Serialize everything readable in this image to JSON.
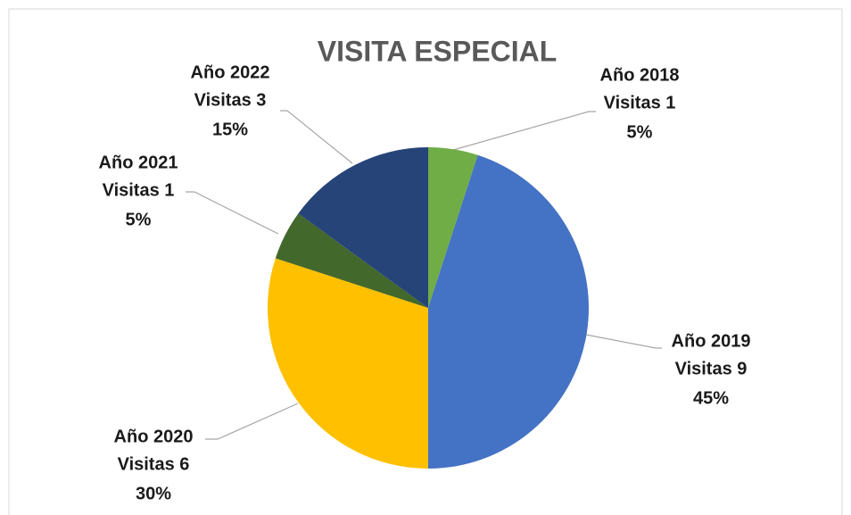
{
  "chart_data": {
    "type": "pie",
    "title": "VISITA ESPECIAL",
    "categories": [
      "Año 2018",
      "Año 2019",
      "Año 2020",
      "Año 2021",
      "Año 2022"
    ],
    "values": [
      1,
      9,
      6,
      1,
      3
    ],
    "value_labels": [
      "Visitas 1",
      "Visitas 9",
      "Visitas 6",
      "Visitas 1",
      "Visitas 3"
    ],
    "percent_labels": [
      "5%",
      "45%",
      "30%",
      "5%",
      "15%"
    ],
    "colors": [
      "#70ad47",
      "#4472c4",
      "#ffc000",
      "#43682b",
      "#264478"
    ]
  }
}
